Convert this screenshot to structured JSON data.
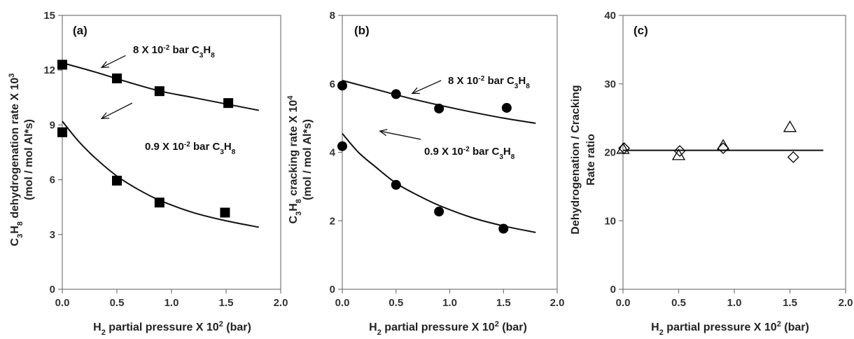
{
  "chart_data": [
    {
      "type": "scatter",
      "panel_label": "(a)",
      "ylabel": "C3H8 dehydrogenation rate X 10³",
      "ylabel2": "(mol / mol Al*s)",
      "xlabel": "H2 partial pressure X 10² (bar)",
      "xlim": [
        0,
        2.0
      ],
      "ylim": [
        0,
        15
      ],
      "xticks": [
        "0.0",
        "0.5",
        "1.0",
        "1.5",
        "2.0"
      ],
      "yticks": [
        "0",
        "3",
        "6",
        "9",
        "12",
        "15"
      ],
      "grid": false,
      "marker": "filled-square",
      "series": [
        {
          "x": [
            0.0,
            0.5,
            0.89,
            1.52
          ],
          "y": [
            12.3,
            11.55,
            10.85,
            10.2
          ]
        },
        {
          "x": [
            0.0,
            0.5,
            0.89,
            1.49
          ],
          "y": [
            8.6,
            5.95,
            4.75,
            4.2
          ]
        }
      ],
      "fits": [
        {
          "x": [
            0.0,
            0.3,
            0.6,
            0.9,
            1.2,
            1.5,
            1.8
          ],
          "y": [
            12.4,
            11.9,
            11.35,
            10.85,
            10.5,
            10.15,
            9.8
          ]
        },
        {
          "x": [
            0.0,
            0.15,
            0.3,
            0.5,
            0.7,
            0.9,
            1.2,
            1.5,
            1.8
          ],
          "y": [
            9.2,
            8.1,
            7.2,
            6.2,
            5.45,
            4.85,
            4.2,
            3.75,
            3.4
          ]
        }
      ],
      "annotations": [
        {
          "text": "8 X 10",
          "sup": "-2",
          "text2": " bar C",
          "sub1": "3",
          "text3": "H",
          "sub2": "8",
          "arrow_from": [
            0.58,
            12.8
          ],
          "arrow_to": [
            0.36,
            12.15
          ]
        },
        {
          "text": "0.9 X 10",
          "sup": "-2",
          "text2": " bar C",
          "sub1": "3",
          "text3": "H",
          "sub2": "8",
          "arrow_from": [
            0.64,
            10.2
          ],
          "arrow_to": [
            0.36,
            9.35
          ]
        }
      ]
    },
    {
      "type": "scatter",
      "panel_label": "(b)",
      "ylabel": "C3H8 cracking rate X 10⁴",
      "ylabel2": "(mol / mol Al*s)",
      "xlabel": "H2 partial pressure X 10² (bar)",
      "xlim": [
        0,
        2.0
      ],
      "ylim": [
        0,
        8
      ],
      "xticks": [
        "0.0",
        "0.5",
        "1.0",
        "1.5",
        "2.0"
      ],
      "yticks": [
        "0",
        "2",
        "4",
        "6",
        "8"
      ],
      "grid": false,
      "marker": "filled-circle",
      "series": [
        {
          "x": [
            0.0,
            0.5,
            0.9,
            1.53
          ],
          "y": [
            5.95,
            5.7,
            5.28,
            5.3
          ]
        },
        {
          "x": [
            0.0,
            0.5,
            0.9,
            1.5
          ],
          "y": [
            4.18,
            3.05,
            2.27,
            1.77
          ]
        }
      ],
      "fits": [
        {
          "x": [
            0.0,
            0.3,
            0.6,
            0.9,
            1.2,
            1.5,
            1.8
          ],
          "y": [
            6.1,
            5.85,
            5.6,
            5.38,
            5.18,
            5.0,
            4.85
          ]
        },
        {
          "x": [
            0.0,
            0.15,
            0.3,
            0.5,
            0.7,
            0.9,
            1.2,
            1.5,
            1.8
          ],
          "y": [
            4.55,
            4.0,
            3.6,
            3.1,
            2.75,
            2.45,
            2.1,
            1.85,
            1.66
          ]
        }
      ],
      "annotations": [
        {
          "text": "8 X 10",
          "sup": "-2",
          "text2": " bar C",
          "sub1": "3",
          "text3": "H",
          "sub2": "8",
          "arrow_from": [
            0.92,
            6.1
          ],
          "arrow_to": [
            0.65,
            5.72
          ]
        },
        {
          "text": "0.9 X 10",
          "sup": "-2",
          "text2": " bar C",
          "sub1": "3",
          "text3": "H",
          "sub2": "8",
          "arrow_from": [
            0.73,
            4.38
          ],
          "arrow_to": [
            0.35,
            4.62
          ]
        }
      ]
    },
    {
      "type": "scatter",
      "panel_label": "(c)",
      "ylabel": "Dehydrogenation / Cracking",
      "ylabel2": "Rate ratio",
      "xlabel": "H2 partial pressure X 10² (bar)",
      "xlim": [
        0,
        2.0
      ],
      "ylim": [
        0,
        40
      ],
      "xticks": [
        "0.0",
        "0.5",
        "1.0",
        "1.5",
        "2.0"
      ],
      "yticks": [
        "0",
        "10",
        "20",
        "30",
        "40"
      ],
      "grid": false,
      "series": [
        {
          "marker": "open-triangle",
          "x": [
            0.0,
            0.5,
            0.9,
            1.5
          ],
          "y": [
            20.5,
            19.6,
            21.0,
            23.7
          ]
        },
        {
          "marker": "open-diamond",
          "x": [
            0.01,
            0.51,
            0.9,
            1.53
          ],
          "y": [
            20.6,
            20.2,
            20.6,
            19.3
          ]
        }
      ],
      "fits": [
        {
          "x": [
            0.0,
            1.8
          ],
          "y": [
            20.3,
            20.3
          ]
        }
      ],
      "annotations": []
    }
  ],
  "colors": {
    "marker": "#000000",
    "line": "#111111",
    "axis": "#777777",
    "text": "#222222"
  }
}
